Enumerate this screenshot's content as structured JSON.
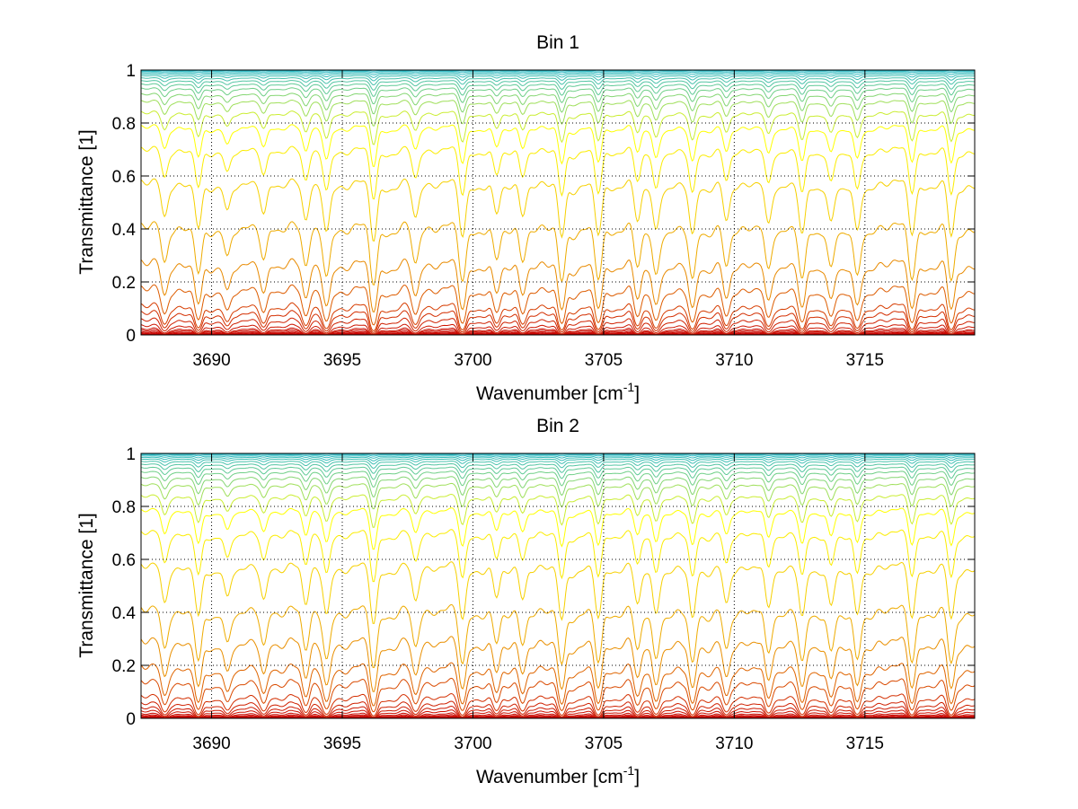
{
  "figure": {
    "background": "#ffffff",
    "grid_color": "#000000",
    "colormap": [
      "#2ab8c8",
      "#ffff00",
      "#e88a00",
      "#c80000"
    ]
  },
  "chart_data": [
    {
      "type": "line",
      "title": "Bin 1",
      "xlabel": "Wavenumber [cm",
      "xlabel_sup": "-1",
      "xlabel_close": "]",
      "ylabel": "Transmittance [1]",
      "xlim": [
        3687.3,
        3719.2
      ],
      "ylim": [
        0,
        1
      ],
      "grid": true,
      "x_ticks": [
        3690,
        3695,
        3700,
        3705,
        3710,
        3715
      ],
      "x_tick_labels": [
        "3690",
        "3695",
        "3700",
        "3705",
        "3710",
        "3715"
      ],
      "y_ticks": [
        0,
        0.2,
        0.4,
        0.6,
        0.8,
        1
      ],
      "y_tick_labels": [
        "0",
        "0.2",
        "0.4",
        "0.6",
        "0.8",
        "1"
      ],
      "series_description_note": "",
      "absorption_lines_cm1": [
        3688.2,
        3689.5,
        3690.6,
        3692.0,
        3693.6,
        3694.4,
        3696.2,
        3697.8,
        3699.6,
        3700.9,
        3701.9,
        3703.4,
        3704.8,
        3706.3,
        3707.0,
        3708.4,
        3709.7,
        3711.3,
        3712.6,
        3713.7,
        3714.7,
        3716.8,
        3718.3
      ],
      "line_strengths": [
        0.55,
        0.75,
        0.45,
        0.5,
        0.6,
        0.75,
        1.0,
        0.55,
        0.9,
        0.5,
        0.5,
        0.95,
        0.85,
        0.6,
        0.75,
        0.9,
        0.6,
        0.7,
        0.85,
        0.65,
        0.8,
        0.85,
        0.9
      ],
      "curve_levels": [
        0.0,
        0.002,
        0.004,
        0.007,
        0.011,
        0.016,
        0.023,
        0.03,
        0.045,
        0.07,
        0.1,
        0.13,
        0.2,
        0.3,
        0.44,
        0.6,
        0.72,
        0.8,
        0.85,
        0.89,
        0.915,
        0.935,
        0.95,
        0.962,
        0.972,
        0.98,
        0.986,
        0.991,
        0.995,
        0.998
      ]
    },
    {
      "type": "line",
      "title": "Bin 2",
      "xlabel": "Wavenumber [cm",
      "xlabel_sup": "-1",
      "xlabel_close": "]",
      "ylabel": "Transmittance [1]",
      "xlim": [
        3687.3,
        3719.2
      ],
      "ylim": [
        0,
        1
      ],
      "grid": true,
      "x_ticks": [
        3690,
        3695,
        3700,
        3705,
        3710,
        3715
      ],
      "x_tick_labels": [
        "3690",
        "3695",
        "3700",
        "3705",
        "3710",
        "3715"
      ],
      "y_ticks": [
        0,
        0.2,
        0.4,
        0.6,
        0.8,
        1
      ],
      "y_tick_labels": [
        "0",
        "0.2",
        "0.4",
        "0.6",
        "0.8",
        "1"
      ],
      "series_description_note": "",
      "absorption_lines_cm1": [
        3688.2,
        3689.5,
        3690.6,
        3692.0,
        3693.6,
        3694.4,
        3696.2,
        3697.8,
        3699.6,
        3700.9,
        3701.9,
        3703.4,
        3704.8,
        3706.3,
        3707.0,
        3708.4,
        3709.7,
        3711.3,
        3712.6,
        3713.7,
        3714.7,
        3716.8,
        3718.3
      ],
      "line_strengths": [
        0.6,
        0.85,
        0.5,
        0.55,
        0.6,
        0.75,
        1.0,
        0.55,
        0.9,
        0.5,
        0.5,
        0.95,
        0.85,
        0.6,
        0.75,
        0.9,
        0.6,
        0.7,
        0.85,
        0.65,
        0.8,
        0.85,
        0.9
      ],
      "curve_levels": [
        0.0,
        0.002,
        0.004,
        0.007,
        0.011,
        0.016,
        0.023,
        0.035,
        0.05,
        0.07,
        0.1,
        0.16,
        0.22,
        0.32,
        0.44,
        0.6,
        0.72,
        0.8,
        0.85,
        0.89,
        0.915,
        0.935,
        0.95,
        0.962,
        0.972,
        0.98,
        0.986,
        0.991,
        0.995,
        0.998
      ]
    }
  ]
}
